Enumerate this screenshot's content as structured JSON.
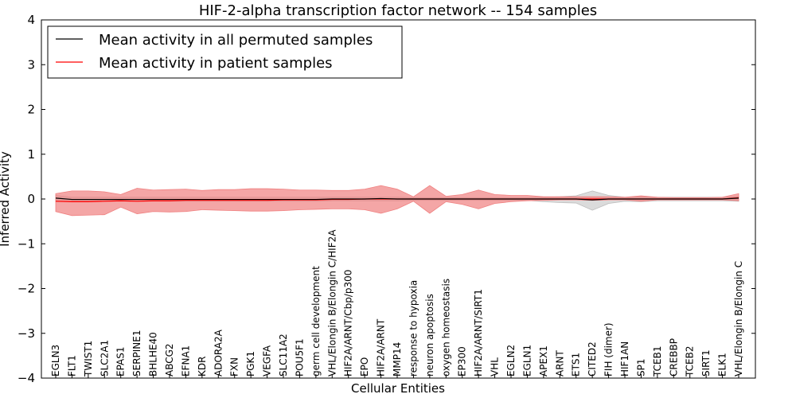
{
  "chart_data": {
    "type": "line",
    "title": "HIF-2-alpha transcription factor network -- 154 samples",
    "xlabel": "Cellular Entities",
    "ylabel": "Inferred Activity",
    "ylim": [
      -4,
      4
    ],
    "yticks": [
      "4",
      "3",
      "2",
      "1",
      "0",
      "−1",
      "−2",
      "−3",
      "−4"
    ],
    "ytick_values": [
      4,
      3,
      2,
      1,
      0,
      -1,
      -2,
      -3,
      -4
    ],
    "legend_position": "top-left",
    "categories": [
      "EGLN3",
      "FLT1",
      "TWIST1",
      "SLC2A1",
      "EPAS1",
      "SERPINE1",
      "BHLHE40",
      "ABCG2",
      "EFNA1",
      "KDR",
      "ADORA2A",
      "FXN",
      "PGK1",
      "VEGFA",
      "SLC11A2",
      "POU5F1",
      "germ cell development",
      "VHL/Elongin B/Elongin C/HIF2A",
      "HIF2A/ARNT/Cbp/p300",
      "EPO",
      "HIF2A/ARNT",
      "MMP14",
      "response to hypoxia",
      "neuron apoptosis",
      "oxygen homeostasis",
      "EP300",
      "HIF2A/ARNT/SIRT1",
      "VHL",
      "EGLN2",
      "EGLN1",
      "APEX1",
      "ARNT",
      "ETS1",
      "CITED2",
      "FIH (dimer)",
      "HIF1AN",
      "SP1",
      "TCEB1",
      "CREBBP",
      "TCEB2",
      "SIRT1",
      "ELK1",
      "VHL/Elongin B/Elongin C"
    ],
    "series": [
      {
        "name": "Mean activity in all permuted samples",
        "color": "#000000",
        "values": [
          0.02,
          -0.01,
          -0.01,
          -0.01,
          -0.01,
          -0.01,
          -0.01,
          -0.01,
          -0.01,
          -0.01,
          -0.01,
          -0.01,
          -0.01,
          -0.01,
          -0.01,
          -0.01,
          -0.01,
          0.0,
          0.0,
          0.0,
          0.01,
          0.0,
          0.0,
          0.0,
          0.0,
          0.0,
          0.0,
          0.0,
          0.0,
          0.0,
          0.0,
          0.0,
          0.0,
          -0.02,
          0.0,
          0.0,
          0.0,
          0.0,
          0.0,
          0.0,
          0.0,
          0.0,
          0.02
        ],
        "band_upper": [
          0.08,
          0.04,
          0.04,
          0.04,
          0.04,
          0.04,
          0.04,
          0.04,
          0.04,
          0.04,
          0.04,
          0.04,
          0.04,
          0.04,
          0.04,
          0.04,
          0.04,
          0.04,
          0.04,
          0.04,
          0.04,
          0.04,
          0.03,
          0.03,
          0.03,
          0.03,
          0.03,
          0.03,
          0.03,
          0.03,
          0.04,
          0.05,
          0.07,
          0.18,
          0.08,
          0.04,
          0.05,
          0.04,
          0.04,
          0.04,
          0.04,
          0.04,
          0.06
        ],
        "band_lower": [
          -0.06,
          -0.05,
          -0.05,
          -0.05,
          -0.05,
          -0.05,
          -0.05,
          -0.05,
          -0.05,
          -0.05,
          -0.05,
          -0.05,
          -0.05,
          -0.05,
          -0.05,
          -0.05,
          -0.05,
          -0.04,
          -0.04,
          -0.04,
          -0.04,
          -0.04,
          -0.03,
          -0.03,
          -0.03,
          -0.03,
          -0.03,
          -0.03,
          -0.03,
          -0.03,
          -0.06,
          -0.08,
          -0.09,
          -0.25,
          -0.1,
          -0.05,
          -0.06,
          -0.04,
          -0.04,
          -0.04,
          -0.04,
          -0.04,
          -0.05
        ],
        "band_color": "#bdbdbd"
      },
      {
        "name": "Mean activity in patient samples",
        "color": "#ff0000",
        "values": [
          -0.05,
          -0.06,
          -0.06,
          -0.05,
          -0.04,
          -0.05,
          -0.04,
          -0.04,
          -0.03,
          -0.03,
          -0.03,
          -0.03,
          -0.03,
          -0.03,
          -0.02,
          -0.02,
          -0.02,
          -0.01,
          -0.01,
          0.0,
          0.0,
          0.0,
          0.0,
          0.0,
          0.0,
          0.0,
          0.0,
          0.0,
          0.0,
          0.0,
          0.0,
          0.0,
          0.0,
          0.0,
          0.0,
          0.0,
          0.0,
          0.0,
          0.0,
          0.0,
          0.0,
          0.0,
          0.03
        ],
        "band_upper": [
          0.12,
          0.18,
          0.18,
          0.16,
          0.1,
          0.24,
          0.2,
          0.21,
          0.22,
          0.19,
          0.21,
          0.21,
          0.23,
          0.23,
          0.22,
          0.2,
          0.2,
          0.19,
          0.19,
          0.22,
          0.3,
          0.22,
          0.05,
          0.3,
          0.06,
          0.1,
          0.2,
          0.1,
          0.08,
          0.08,
          0.05,
          0.05,
          0.05,
          0.05,
          0.05,
          0.04,
          0.07,
          0.04,
          0.03,
          0.03,
          0.03,
          0.04,
          0.12
        ],
        "band_lower": [
          -0.28,
          -0.37,
          -0.36,
          -0.35,
          -0.18,
          -0.33,
          -0.28,
          -0.29,
          -0.28,
          -0.24,
          -0.25,
          -0.26,
          -0.27,
          -0.27,
          -0.26,
          -0.24,
          -0.23,
          -0.22,
          -0.22,
          -0.24,
          -0.32,
          -0.22,
          -0.05,
          -0.32,
          -0.06,
          -0.12,
          -0.22,
          -0.1,
          -0.06,
          -0.04,
          -0.03,
          -0.02,
          -0.02,
          -0.03,
          -0.02,
          -0.02,
          -0.05,
          -0.02,
          -0.02,
          -0.02,
          -0.02,
          -0.02,
          -0.04
        ],
        "band_color": "#f08080"
      }
    ]
  }
}
